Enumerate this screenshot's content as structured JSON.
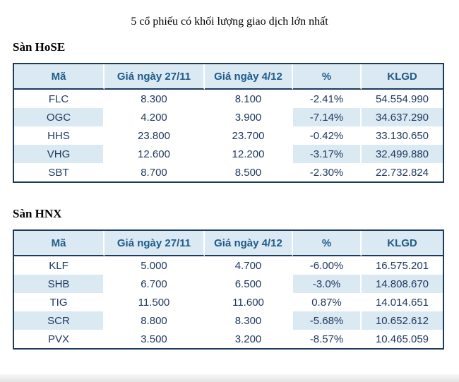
{
  "page": {
    "title": "5 cổ phiếu có khối lượng giao dịch lớn nhất"
  },
  "colors": {
    "table_border": "#1B3A5C",
    "header_background": "#DAE9F2",
    "header_text": "#1F5C8B",
    "body_text": "#20395F",
    "negative_percent": "#C00000",
    "positive_percent": "#00A651"
  },
  "tables": [
    {
      "section": "Sàn HoSE",
      "columns": [
        "Mã",
        "Giá ngày 27/11",
        "Giá ngày 4/12",
        "%",
        "KLGD"
      ],
      "rows": [
        {
          "code": "FLC",
          "price1": "8.300",
          "price2": "8.100",
          "pct": "-2.41%",
          "trend": "down",
          "klgd": "54.554.990"
        },
        {
          "code": "OGC",
          "price1": "4.200",
          "price2": "3.900",
          "pct": "-7.14%",
          "trend": "down",
          "klgd": "34.637.290"
        },
        {
          "code": "HHS",
          "price1": "23.800",
          "price2": "23.700",
          "pct": "-0.42%",
          "trend": "down",
          "klgd": "33.130.650"
        },
        {
          "code": "VHG",
          "price1": "12.600",
          "price2": "12.200",
          "pct": "-3.17%",
          "trend": "down",
          "klgd": "32.499.880"
        },
        {
          "code": "SBT",
          "price1": "8.700",
          "price2": "8.500",
          "pct": "-2.30%",
          "trend": "down",
          "klgd": "22.732.824"
        }
      ]
    },
    {
      "section": "Sàn HNX",
      "columns": [
        "Mã",
        "Giá ngày 27/11",
        "Giá ngày 4/12",
        "%",
        "KLGD"
      ],
      "rows": [
        {
          "code": "KLF",
          "price1": "5.000",
          "price2": "4.700",
          "pct": "-6.00%",
          "trend": "down",
          "klgd": "16.575.201"
        },
        {
          "code": "SHB",
          "price1": "6.700",
          "price2": "6.500",
          "pct": "-3.0%",
          "trend": "down",
          "klgd": "14.808.670"
        },
        {
          "code": "TIG",
          "price1": "11.500",
          "price2": "11.600",
          "pct": "0.87%",
          "trend": "up",
          "klgd": "14.014.651"
        },
        {
          "code": "SCR",
          "price1": "8.800",
          "price2": "8.300",
          "pct": "-5.68%",
          "trend": "down",
          "klgd": "10.652.612"
        },
        {
          "code": "PVX",
          "price1": "3.500",
          "price2": "3.200",
          "pct": "-8.57%",
          "trend": "down",
          "klgd": "10.465.059"
        }
      ]
    }
  ]
}
